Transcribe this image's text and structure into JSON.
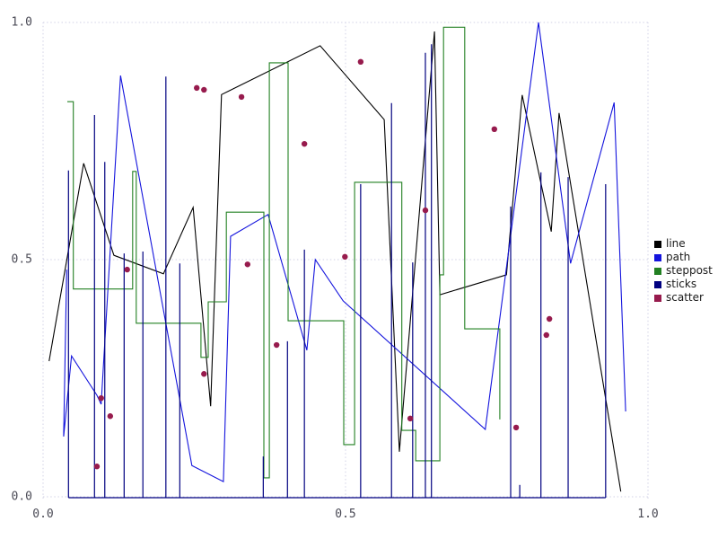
{
  "figure": {
    "background": "#ffffff",
    "grid_color": "#d2d2e6",
    "tick_color": "#4a4a55"
  },
  "axis": {
    "xlim": [
      0,
      1
    ],
    "ylim": [
      0,
      1
    ],
    "x_ticks": [
      {
        "label": "0.0",
        "value": 0.0
      },
      {
        "label": "0.5",
        "value": 0.5
      },
      {
        "label": "1.0",
        "value": 1.0
      }
    ],
    "y_ticks": [
      {
        "label": "0.0",
        "value": 0.0
      },
      {
        "label": "0.5",
        "value": 0.5
      },
      {
        "label": "1.0",
        "value": 1.0
      }
    ]
  },
  "legend": {
    "position": "right",
    "items": [
      {
        "label": "line",
        "color": "#000000"
      },
      {
        "label": "path",
        "color": "#1414dd"
      },
      {
        "label": "steppost",
        "color": "#228022"
      },
      {
        "label": "sticks",
        "color": "#000080"
      },
      {
        "label": "scatter",
        "color": "#971b4d"
      }
    ]
  },
  "chart_data": {
    "type": "line",
    "title": "",
    "xlabel": "",
    "ylabel": "",
    "xlim": [
      0,
      1
    ],
    "ylim": [
      0,
      1
    ],
    "grid": true,
    "legend_position": "right",
    "series": [
      {
        "name": "line",
        "kind": "line",
        "color": "#000000",
        "points": [
          [
            0.01,
            0.286
          ],
          [
            0.067,
            0.703
          ],
          [
            0.117,
            0.509
          ],
          [
            0.199,
            0.47
          ],
          [
            0.248,
            0.61
          ],
          [
            0.277,
            0.191
          ],
          [
            0.295,
            0.848
          ],
          [
            0.458,
            0.951
          ],
          [
            0.564,
            0.795
          ],
          [
            0.589,
            0.095
          ],
          [
            0.647,
            0.981
          ],
          [
            0.656,
            0.426
          ],
          [
            0.766,
            0.468
          ],
          [
            0.792,
            0.847
          ],
          [
            0.84,
            0.559
          ],
          [
            0.853,
            0.809
          ],
          [
            0.955,
            0.011
          ]
        ]
      },
      {
        "name": "path",
        "kind": "path",
        "color": "#1414dd",
        "points": [
          [
            0.039,
            0.479
          ],
          [
            0.034,
            0.127
          ],
          [
            0.047,
            0.297
          ],
          [
            0.089,
            0.214
          ],
          [
            0.096,
            0.195
          ],
          [
            0.128,
            0.888
          ],
          [
            0.246,
            0.066
          ],
          [
            0.298,
            0.032
          ],
          [
            0.31,
            0.549
          ],
          [
            0.372,
            0.595
          ],
          [
            0.436,
            0.309
          ],
          [
            0.45,
            0.5
          ],
          [
            0.496,
            0.413
          ],
          [
            0.731,
            0.142
          ],
          [
            0.819,
            1.0
          ],
          [
            0.872,
            0.492
          ],
          [
            0.944,
            0.831
          ],
          [
            0.963,
            0.18
          ]
        ]
      },
      {
        "name": "steppost",
        "kind": "steppost",
        "color": "#228022",
        "points": [
          [
            0.04,
            0.833
          ],
          [
            0.05,
            0.438
          ],
          [
            0.148,
            0.686
          ],
          [
            0.154,
            0.366
          ],
          [
            0.261,
            0.294
          ],
          [
            0.273,
            0.411
          ],
          [
            0.303,
            0.6
          ],
          [
            0.365,
            0.04
          ],
          [
            0.374,
            0.915
          ],
          [
            0.405,
            0.371
          ],
          [
            0.497,
            0.11
          ],
          [
            0.515,
            0.663
          ],
          [
            0.593,
            0.14
          ],
          [
            0.616,
            0.076
          ],
          [
            0.656,
            0.468
          ],
          [
            0.662,
            0.99
          ],
          [
            0.697,
            0.354
          ],
          [
            0.755,
            0.163
          ]
        ]
      },
      {
        "name": "sticks",
        "kind": "sticks",
        "color": "#000080",
        "baseline": 0,
        "points": [
          [
            0.042,
            0.688
          ],
          [
            0.085,
            0.805
          ],
          [
            0.102,
            0.706
          ],
          [
            0.134,
            0.513
          ],
          [
            0.165,
            0.517
          ],
          [
            0.203,
            0.886
          ],
          [
            0.226,
            0.492
          ],
          [
            0.364,
            0.085
          ],
          [
            0.404,
            0.328
          ],
          [
            0.432,
            0.521
          ],
          [
            0.525,
            0.659
          ],
          [
            0.576,
            0.83
          ],
          [
            0.611,
            0.494
          ],
          [
            0.632,
            0.936
          ],
          [
            0.642,
            0.954
          ],
          [
            0.773,
            0.612
          ],
          [
            0.788,
            0.025
          ],
          [
            0.823,
            0.684
          ],
          [
            0.868,
            0.674
          ],
          [
            0.93,
            0.659
          ]
        ]
      },
      {
        "name": "scatter",
        "kind": "scatter",
        "color": "#971b4d",
        "marker_radius": 3.2,
        "points": [
          [
            0.254,
            0.862
          ],
          [
            0.266,
            0.858
          ],
          [
            0.328,
            0.843
          ],
          [
            0.432,
            0.744
          ],
          [
            0.525,
            0.917
          ],
          [
            0.746,
            0.775
          ],
          [
            0.139,
            0.479
          ],
          [
            0.338,
            0.49
          ],
          [
            0.499,
            0.506
          ],
          [
            0.632,
            0.604
          ],
          [
            0.837,
            0.375
          ],
          [
            0.832,
            0.341
          ],
          [
            0.096,
            0.208
          ],
          [
            0.111,
            0.17
          ],
          [
            0.089,
            0.064
          ],
          [
            0.266,
            0.259
          ],
          [
            0.386,
            0.32
          ],
          [
            0.607,
            0.165
          ],
          [
            0.782,
            0.146
          ]
        ]
      }
    ]
  }
}
